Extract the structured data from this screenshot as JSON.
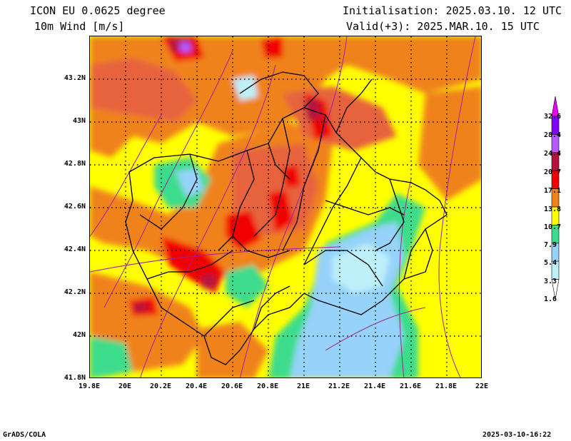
{
  "header": {
    "title_line1": "ICON EU 0.0625 degree",
    "title_line2": "10m Wind [m/s]",
    "init_line": "Initialisation: 2025.03.10. 12 UTC",
    "valid_line": "Valid(+3): 2025.MAR.10. 15 UTC"
  },
  "map": {
    "lat_labels": [
      "43.2N",
      "43N",
      "42.8N",
      "42.6N",
      "42.4N",
      "42.2N",
      "42N",
      "41.8N"
    ],
    "lon_labels": [
      "19.8E",
      "20E",
      "20.2E",
      "20.4E",
      "20.6E",
      "20.8E",
      "21E",
      "21.2E",
      "21.4E",
      "21.6E",
      "21.8E",
      "22E"
    ],
    "lat_range": [
      41.8,
      43.4
    ],
    "lon_range": [
      19.8,
      22.0
    ],
    "grid": "dotted"
  },
  "legend": {
    "labels": [
      "32.6",
      "28.4",
      "24.4",
      "20.7",
      "17.1",
      "13.8",
      "10.7",
      "7.9",
      "5.4",
      "3.3",
      "1.6"
    ],
    "colors": [
      "#f000f0",
      "#7f00ff",
      "#b45aff",
      "#b4143c",
      "#f00000",
      "#f0821e",
      "#ffff00",
      "#3cdc8c",
      "#96d2fa",
      "#bef0fa"
    ]
  },
  "footer": {
    "left": "GrADS/COLA",
    "right": "2025-03-10-16:22"
  }
}
